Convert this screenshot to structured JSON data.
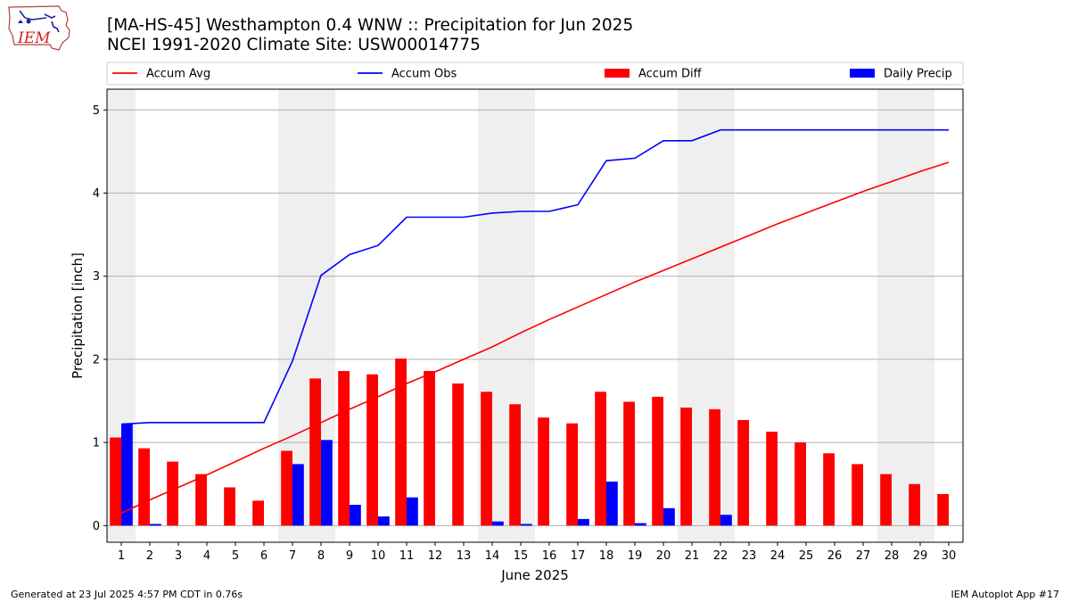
{
  "header": {
    "title_line1": "[MA-HS-45] Westhampton 0.4 WNW :: Precipitation for Jun 2025",
    "title_line2": "NCEI 1991-2020 Climate Site: USW00014775",
    "logo_text": "IEM"
  },
  "footer": {
    "generated": "Generated at 23 Jul 2025 4:57 PM CDT in 0.76s",
    "app": "IEM Autoplot App #17"
  },
  "chart_data": {
    "type": "bar",
    "xlabel": "June 2025",
    "ylabel": "Precipitation [inch]",
    "xlim": [
      0.5,
      30.5
    ],
    "ylim": [
      -0.2,
      5.25
    ],
    "x": [
      1,
      2,
      3,
      4,
      5,
      6,
      7,
      8,
      9,
      10,
      11,
      12,
      13,
      14,
      15,
      16,
      17,
      18,
      19,
      20,
      21,
      22,
      23,
      24,
      25,
      26,
      27,
      28,
      29,
      30
    ],
    "x_tick_labels": [
      "1",
      "2",
      "3",
      "4",
      "5",
      "6",
      "7",
      "8",
      "9",
      "10",
      "11",
      "12",
      "13",
      "14",
      "15",
      "16",
      "17",
      "18",
      "19",
      "20",
      "21",
      "22",
      "23",
      "24",
      "25",
      "26",
      "27",
      "28",
      "29",
      "30"
    ],
    "y_ticks": [
      0,
      1,
      2,
      3,
      4,
      5
    ],
    "y_tick_labels": [
      "0",
      "1",
      "2",
      "3",
      "4",
      "5"
    ],
    "grid": "horizontal",
    "weekend_shading": [
      [
        0.5,
        1.5
      ],
      [
        6.5,
        8.5
      ],
      [
        13.5,
        15.5
      ],
      [
        20.5,
        22.5
      ],
      [
        27.5,
        29.5
      ]
    ],
    "legend_position": "top",
    "series": [
      {
        "name": "Accum Avg",
        "kind": "line",
        "color": "#ff0000",
        "values": [
          0.15,
          0.31,
          0.46,
          0.61,
          0.77,
          0.93,
          1.08,
          1.24,
          1.4,
          1.55,
          1.71,
          1.85,
          2.0,
          2.15,
          2.32,
          2.48,
          2.63,
          2.78,
          2.93,
          3.07,
          3.21,
          3.35,
          3.49,
          3.63,
          3.76,
          3.89,
          4.02,
          4.14,
          4.26,
          4.37
        ]
      },
      {
        "name": "Accum Obs",
        "kind": "line",
        "color": "#0000ff",
        "values": [
          1.22,
          1.24,
          1.24,
          1.24,
          1.24,
          1.24,
          1.98,
          3.01,
          3.26,
          3.37,
          3.71,
          3.71,
          3.71,
          3.76,
          3.78,
          3.78,
          3.86,
          4.39,
          4.42,
          4.63,
          4.63,
          4.76,
          4.76,
          4.76,
          4.76,
          4.76,
          4.76,
          4.76,
          4.76,
          4.76
        ]
      },
      {
        "name": "Accum Diff",
        "kind": "bar",
        "color": "#ff0000",
        "values": [
          1.06,
          0.93,
          0.77,
          0.62,
          0.46,
          0.3,
          0.9,
          1.77,
          1.86,
          1.82,
          2.01,
          1.86,
          1.71,
          1.61,
          1.46,
          1.3,
          1.23,
          1.61,
          1.49,
          1.55,
          1.42,
          1.4,
          1.27,
          1.13,
          1.0,
          0.87,
          0.74,
          0.62,
          0.5,
          0.38
        ]
      },
      {
        "name": "Daily Precip",
        "kind": "bar",
        "color": "#0000ff",
        "values": [
          1.22,
          0.02,
          0,
          0,
          0,
          0,
          0.74,
          1.03,
          0.25,
          0.11,
          0.34,
          0,
          0,
          0.05,
          0.02,
          0,
          0.08,
          0.53,
          0.03,
          0.21,
          0,
          0.13,
          0,
          0,
          0,
          0,
          0,
          0,
          0,
          0
        ]
      }
    ]
  }
}
